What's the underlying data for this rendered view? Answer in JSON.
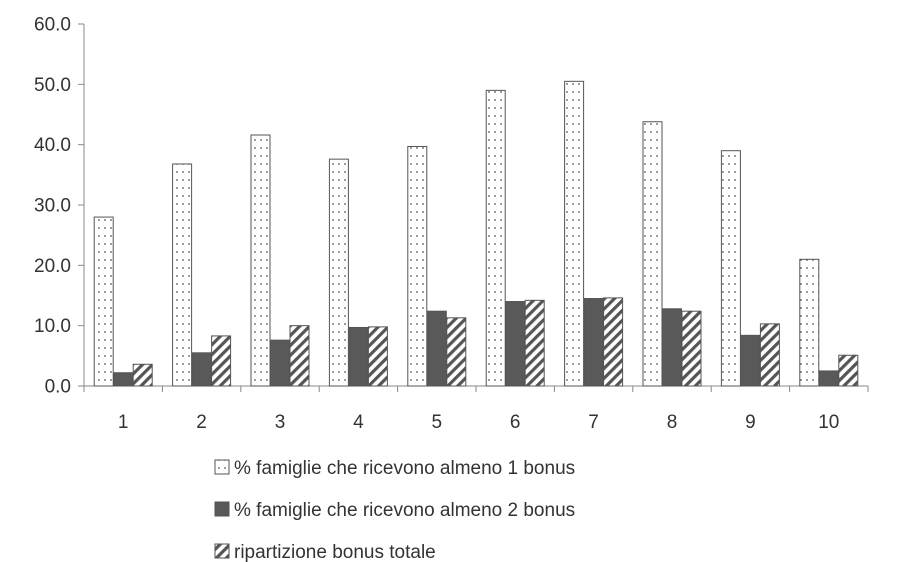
{
  "chart_data": {
    "type": "bar",
    "title": "",
    "xlabel": "",
    "ylabel": "",
    "categories": [
      "1",
      "2",
      "3",
      "4",
      "5",
      "6",
      "7",
      "8",
      "9",
      "10"
    ],
    "ylim": [
      0,
      60
    ],
    "yticks": [
      "0.0",
      "10.0",
      "20.0",
      "30.0",
      "40.0",
      "50.0",
      "60.0"
    ],
    "grid": false,
    "legend_position": "bottom",
    "series": [
      {
        "name": "% famiglie che ricevono almeno 1 bonus",
        "pattern": "dotted",
        "values": [
          28.0,
          36.8,
          41.6,
          37.6,
          39.7,
          49.0,
          50.5,
          43.8,
          39.0,
          21.0
        ]
      },
      {
        "name": "% famiglie che ricevono almeno 2 bonus",
        "pattern": "solid",
        "color": "#595959",
        "values": [
          2.2,
          5.5,
          7.6,
          9.7,
          12.4,
          14.0,
          14.5,
          12.8,
          8.4,
          2.5
        ]
      },
      {
        "name": "ripartizione bonus totale",
        "pattern": "diagonal-hatch",
        "values": [
          3.6,
          8.3,
          10.0,
          9.8,
          11.3,
          14.2,
          14.6,
          12.4,
          10.3,
          5.1
        ]
      }
    ]
  }
}
